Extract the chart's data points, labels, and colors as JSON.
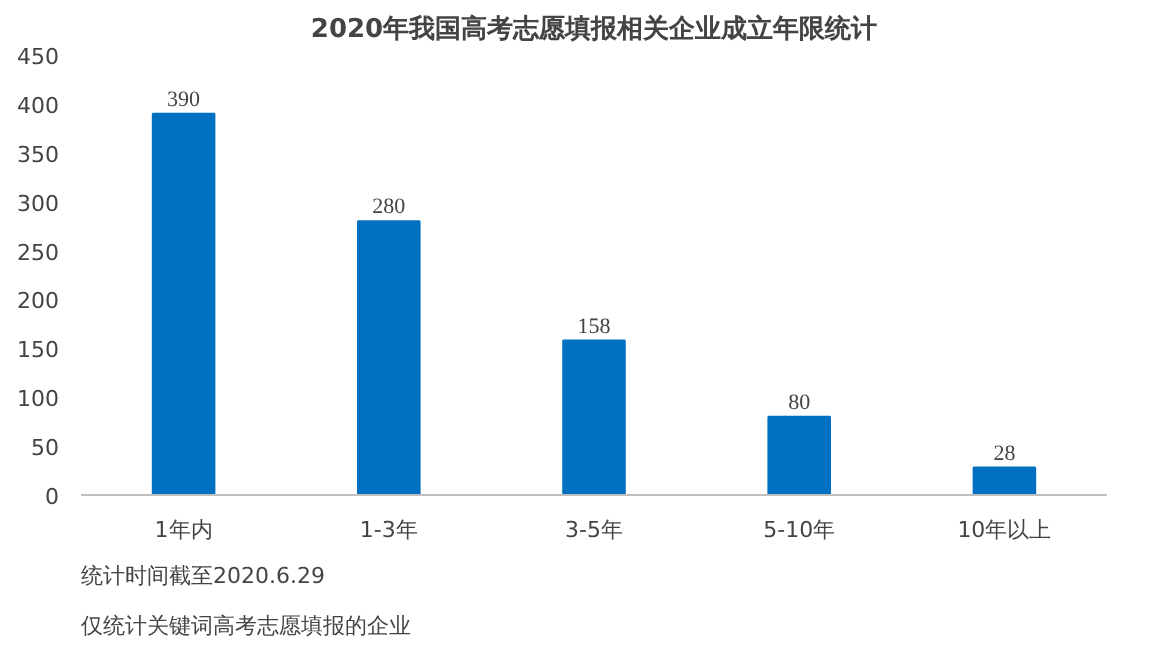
{
  "chart_data": {
    "type": "bar",
    "title": "2020年我国高考志愿填报相关企业成立年限统计",
    "categories": [
      "1年内",
      "1-3年",
      "3-5年",
      "5-10年",
      "10年以上"
    ],
    "values": [
      390,
      280,
      158,
      80,
      28
    ],
    "color": "#0070c0",
    "ylim": [
      0,
      450
    ],
    "yticks": [
      0,
      50,
      100,
      150,
      200,
      250,
      300,
      350,
      400,
      450
    ],
    "grid": false,
    "data_labels": true,
    "annotations": [
      "统计时间截至2020.6.29",
      "仅统计关键词高考志愿填报的企业"
    ]
  }
}
